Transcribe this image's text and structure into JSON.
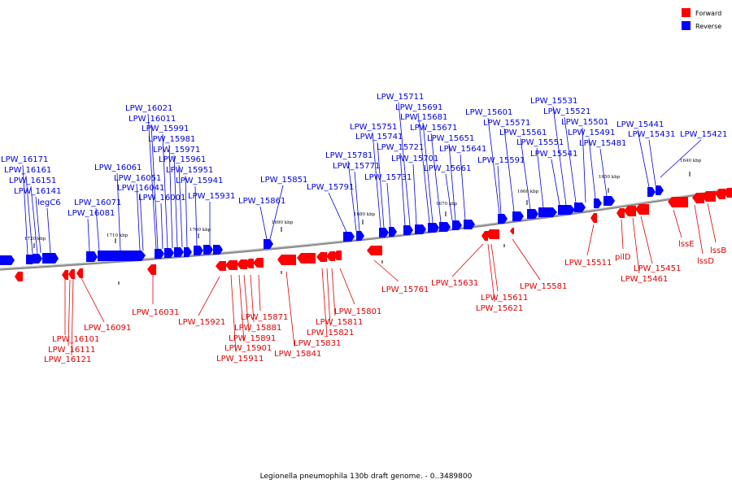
{
  "legend": [
    {
      "label": "Forward",
      "color": "#ff0000"
    },
    {
      "label": "Reverse",
      "color": "#0000ff"
    }
  ],
  "caption": "Legionella pneumophila 130b draft genome. - 0..3489800",
  "colors": {
    "forward": "#ff0000",
    "reverse": "#0000ff",
    "backbone": "#8a8a8a"
  },
  "ticks": [
    "1720 kbp",
    "1710 kbp",
    "1700 kbp",
    "1690 kbp",
    "1680 kbp",
    "1670 kbp",
    "1660 kbp",
    "1650 kbp",
    "1640 kbp"
  ],
  "reverse_labels": [
    "LPW_16171",
    "LPW_16161",
    "LPW_16151",
    "LPW_16141",
    "legC6",
    "LPW_16081",
    "LPW_16071",
    "LPW_16061",
    "LPW_16051",
    "LPW_16041",
    "LPW_16021",
    "LPW_16011",
    "LPW_15991",
    "LPW_15981",
    "LPW_15971",
    "LPW_15961",
    "LPW_15951",
    "LPW_16001",
    "LPW_15941",
    "LPW_15931",
    "LPW_15861",
    "LPW_15851",
    "LPW_15791",
    "LPW_15781",
    "LPW_15771",
    "LPW_15751",
    "LPW_15741",
    "LPW_15731",
    "LPW_15721",
    "LPW_15711",
    "LPW_15701",
    "LPW_15691",
    "LPW_15681",
    "LPW_15671",
    "LPW_15661",
    "LPW_15651",
    "LPW_15641",
    "LPW_15601",
    "LPW_15591",
    "LPW_15571",
    "LPW_15561",
    "LPW_15551",
    "LPW_15541",
    "LPW_15531",
    "LPW_15521",
    "LPW_15501",
    "LPW_15491",
    "LPW_15481",
    "LPW_15441",
    "LPW_15431",
    "LPW_15421"
  ],
  "forward_labels": [
    "LPW_16091",
    "LPW_16101",
    "LPW_16111",
    "LPW_16121",
    "LPW_16031",
    "LPW_15921",
    "LPW_15871",
    "LPW_15881",
    "LPW_15891",
    "LPW_15901",
    "LPW_15911",
    "LPW_15841",
    "LPW_15831",
    "LPW_15821",
    "LPW_15811",
    "LPW_15801",
    "LPW_15761",
    "LPW_15631",
    "LPW_15611",
    "LPW_15621",
    "LPW_15581",
    "LPW_15511",
    "pilD",
    "LPW_15451",
    "LPW_15461",
    "lssE",
    "lssD",
    "lssB"
  ]
}
